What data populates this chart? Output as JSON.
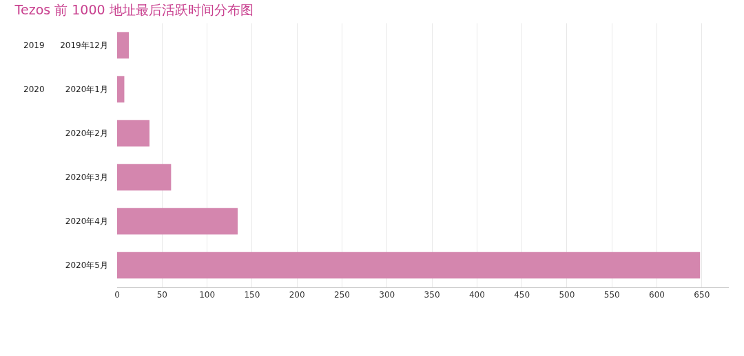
{
  "chart_data": {
    "type": "bar",
    "orientation": "horizontal",
    "title": "Tezos 前 1000 地址最后活跃时间分布图",
    "categories": [
      "2019年12月",
      "2020年1月",
      "2020年2月",
      "2020年3月",
      "2020年4月",
      "2020年5月"
    ],
    "values": [
      13,
      8,
      36,
      60,
      134,
      648
    ],
    "color": "#d486ae",
    "xlim": [
      0,
      680
    ],
    "xticks": [
      0,
      50,
      100,
      150,
      200,
      250,
      300,
      350,
      400,
      450,
      500,
      550,
      600,
      650
    ],
    "grid": "x",
    "annotations": [
      "2019",
      "2020"
    ]
  }
}
